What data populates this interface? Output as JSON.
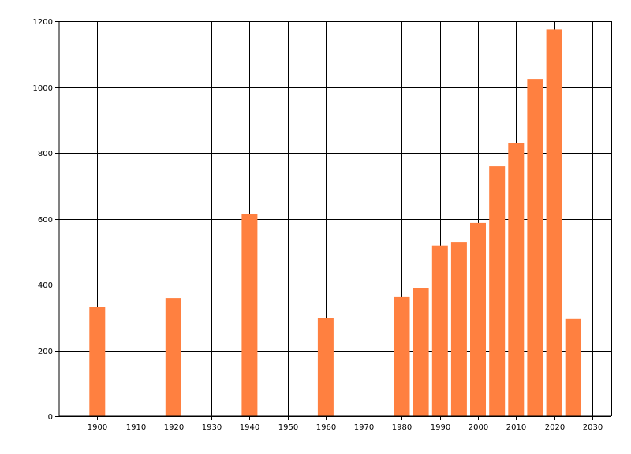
{
  "chart_data": {
    "type": "bar",
    "title": "",
    "xlabel": "",
    "ylabel": "",
    "x": [
      1900,
      1920,
      1940,
      1960,
      1980,
      1985,
      1990,
      1995,
      2000,
      2005,
      2010,
      2015,
      2020,
      2025
    ],
    "values": [
      331,
      359,
      615,
      299,
      362,
      390,
      518,
      529,
      587,
      759,
      830,
      1025,
      1175,
      295
    ],
    "xlim": [
      1890,
      2035
    ],
    "ylim": [
      0,
      1200
    ],
    "xticks": [
      1900,
      1910,
      1920,
      1930,
      1940,
      1950,
      1960,
      1970,
      1980,
      1990,
      2000,
      2010,
      2020,
      2030
    ],
    "yticks": [
      0,
      200,
      400,
      600,
      800,
      1000,
      1200
    ],
    "bar_color": "#FF8040",
    "grid": true,
    "grid_color": "#000000"
  }
}
